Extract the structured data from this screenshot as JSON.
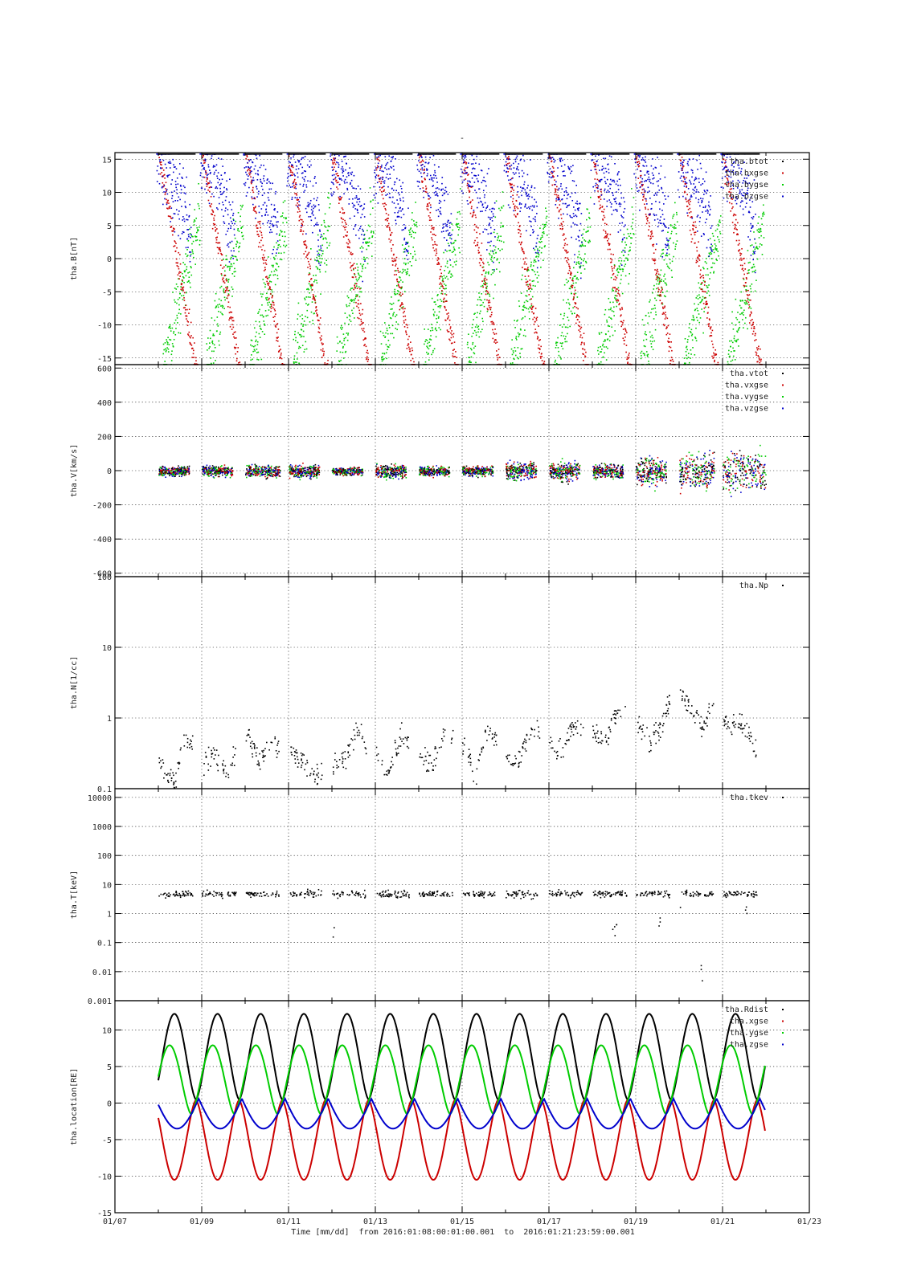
{
  "top_mark": "-",
  "xlabel": "Time [mm/dd]  from 2016:01:08:00:01:00.001  to  2016:01:21:23:59:00.001",
  "x_ticks": [
    "01/07",
    "01/09",
    "01/11",
    "01/13",
    "01/15",
    "01/17",
    "01/19",
    "01/21",
    "01/23"
  ],
  "colors": {
    "black": "#000000",
    "red": "#cc0000",
    "green": "#00cc00",
    "blue": "#0000cc"
  },
  "chart_data": [
    {
      "type": "scatter",
      "ylabel": "tha.B[nT]",
      "yscale": "linear",
      "ylim": [
        -16,
        16
      ],
      "yticks": [
        15,
        10,
        5,
        0,
        -5,
        -10,
        -15
      ],
      "ytick_labels": [
        "15",
        "10",
        "5",
        "0",
        "-5",
        "-10",
        "-15"
      ],
      "xlim_days": [
        7,
        23
      ],
      "data_x_range": [
        8.0,
        21.99
      ],
      "grid": true,
      "legend_position": "top-right",
      "legend": [
        "tha.btot",
        "tha.bxgse",
        "tha.bygse",
        "tha.bzgse"
      ],
      "series": [
        {
          "name": "tha.btot",
          "color": "black",
          "values_note": "saturated at top of axis (>16 nT) near perigee, dropping to ~12-16 nT"
        },
        {
          "name": "tha.bxgse",
          "color": "red",
          "pattern": "orbital sweep from +16 to -16 nT each ~1 day orbit"
        },
        {
          "name": "tha.bygse",
          "color": "green",
          "pattern": "rises from -16 to ~+5 nT each orbit"
        },
        {
          "name": "tha.bzgse",
          "color": "blue",
          "pattern": "mostly +3 to +16 nT, drops near end of orbit"
        }
      ]
    },
    {
      "type": "scatter",
      "ylabel": "tha.V[km/s]",
      "yscale": "linear",
      "ylim": [
        -620,
        620
      ],
      "yticks": [
        600,
        400,
        200,
        0,
        -200,
        -400,
        -600
      ],
      "ytick_labels": [
        "600",
        "400",
        "200",
        "0",
        "-200",
        "-400",
        "-600"
      ],
      "xlim_days": [
        7,
        23
      ],
      "grid": true,
      "legend_position": "top-right",
      "legend": [
        "tha.vtot",
        "tha.vxgse",
        "tha.vygse",
        "tha.vzgse"
      ],
      "segments_days": [
        [
          8.0,
          8.7
        ],
        [
          9.0,
          9.7
        ],
        [
          10.0,
          10.8
        ],
        [
          11.0,
          11.7
        ],
        [
          12.0,
          12.7
        ],
        [
          13.0,
          13.7
        ],
        [
          14.0,
          14.7
        ],
        [
          15.0,
          15.7
        ],
        [
          16.0,
          16.7
        ],
        [
          17.0,
          17.7
        ],
        [
          18.0,
          18.7
        ],
        [
          19.0,
          19.7
        ],
        [
          20.0,
          20.8
        ],
        [
          21.0,
          21.99
        ]
      ],
      "spread_km_s": [
        40,
        45,
        50,
        50,
        35,
        60,
        40,
        40,
        70,
        80,
        60,
        110,
        140,
        160
      ]
    },
    {
      "type": "scatter",
      "ylabel": "tha.N[1/cc]",
      "yscale": "log",
      "ylim": [
        0.1,
        100
      ],
      "yticks": [
        100,
        10,
        1,
        0.1
      ],
      "ytick_labels": [
        "100",
        "10",
        "1",
        "0.1"
      ],
      "xlim_days": [
        7,
        23
      ],
      "grid": true,
      "legend_position": "top-right",
      "legend": [
        "tha.Np"
      ],
      "series": [
        {
          "name": "tha.Np",
          "color": "black",
          "x": [
            8.0,
            8.2,
            8.4,
            8.6,
            9.0,
            9.3,
            9.6,
            10.0,
            10.3,
            10.6,
            11.0,
            11.3,
            11.6,
            12.0,
            12.3,
            12.6,
            13.0,
            13.3,
            13.6,
            14.0,
            14.3,
            14.6,
            15.0,
            15.3,
            15.6,
            16.0,
            16.3,
            16.6,
            17.0,
            17.3,
            17.6,
            18.0,
            18.3,
            18.6,
            19.0,
            19.3,
            19.6,
            19.9,
            20.2,
            20.5,
            20.8,
            21.1,
            21.4,
            21.7,
            21.95
          ],
          "y": [
            0.25,
            0.15,
            0.12,
            0.55,
            0.2,
            0.3,
            0.15,
            0.6,
            0.25,
            0.4,
            0.4,
            0.25,
            0.14,
            0.2,
            0.3,
            0.6,
            0.3,
            0.15,
            0.55,
            0.35,
            0.2,
            0.65,
            0.35,
            0.15,
            0.7,
            0.25,
            0.3,
            0.7,
            0.45,
            0.35,
            0.8,
            0.6,
            0.5,
            1.3,
            0.9,
            0.45,
            0.75,
            2.5,
            1.6,
            0.7,
            1.5,
            0.8,
            0.9,
            0.4,
            0.2
          ]
        }
      ]
    },
    {
      "type": "scatter",
      "ylabel": "tha.T[keV]",
      "yscale": "log",
      "ylim": [
        0.001,
        20000
      ],
      "yticks": [
        10000,
        1000,
        100,
        10,
        1,
        0.1,
        0.01,
        0.001
      ],
      "ytick_labels": [
        "10000",
        "1000",
        "100",
        "10",
        "1",
        "0.1",
        "0.01",
        "0.001"
      ],
      "xlim_days": [
        7,
        23
      ],
      "grid": true,
      "legend_position": "top-right",
      "legend": [
        "tha.tkev"
      ],
      "series": [
        {
          "name": "tha.tkev",
          "color": "black",
          "typical_keV": 5,
          "dips": [
            [
              12.0,
              0.2
            ],
            [
              18.5,
              0.5
            ],
            [
              19.5,
              0.6
            ],
            [
              20.0,
              1.0
            ],
            [
              20.5,
              0.01
            ],
            [
              21.5,
              2
            ]
          ]
        }
      ]
    },
    {
      "type": "line",
      "ylabel": "tha.location[RE]",
      "yscale": "linear",
      "ylim": [
        -15,
        14
      ],
      "yticks": [
        10,
        5,
        0,
        -5,
        -10,
        -15
      ],
      "ytick_labels": [
        "10",
        "5",
        "0",
        "-5",
        "-10",
        "-15"
      ],
      "xlim_days": [
        7,
        23
      ],
      "grid": true,
      "legend_position": "top-right",
      "legend": [
        "tha.Rdist",
        "tha.xgse",
        "tha.ygse",
        "tha.zgse"
      ],
      "orbit_period_days": 0.9945,
      "apogee_day0": 8.37,
      "x_range": [
        8.0,
        21.99
      ],
      "series": [
        {
          "name": "tha.Rdist",
          "color": "black",
          "min": 0.5,
          "max": 12.2
        },
        {
          "name": "tha.xgse",
          "color": "red",
          "min": -10.5,
          "max": 0.4
        },
        {
          "name": "tha.ygse",
          "color": "green",
          "min": -1.5,
          "max": 7.9
        },
        {
          "name": "tha.zgse",
          "color": "blue",
          "min": -3.5,
          "max": 0.6
        }
      ]
    }
  ]
}
